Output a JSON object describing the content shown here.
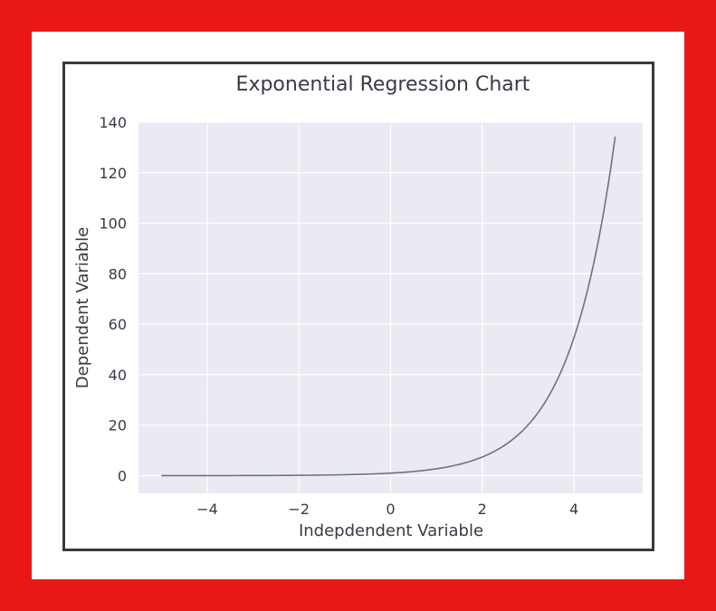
{
  "chart_data": {
    "type": "line",
    "title": "Exponential Regression Chart",
    "xlabel": "Indepdendent Variable",
    "ylabel": "Dependent Variable",
    "xlim": [
      -5.5,
      5.5
    ],
    "ylim": [
      -7,
      140
    ],
    "xticks": [
      -4,
      -2,
      0,
      2,
      4
    ],
    "xtick_labels": [
      "−4",
      "−2",
      "0",
      "2",
      "4"
    ],
    "yticks": [
      0,
      20,
      40,
      60,
      80,
      100,
      120,
      140
    ],
    "ytick_labels": [
      "0",
      "20",
      "40",
      "60",
      "80",
      "100",
      "120",
      "140"
    ],
    "grid": true,
    "series": [
      {
        "color": "#6f7088",
        "function": "exp(x)",
        "x_start": -5,
        "x_end": 4.9
      }
    ]
  },
  "colors": {
    "frame": "#e81818",
    "panel": "#ffffff",
    "border": "#3a3a3a",
    "plot_bg": "#eaeaf2",
    "grid": "#ffffff",
    "text": "#3a3a46"
  }
}
